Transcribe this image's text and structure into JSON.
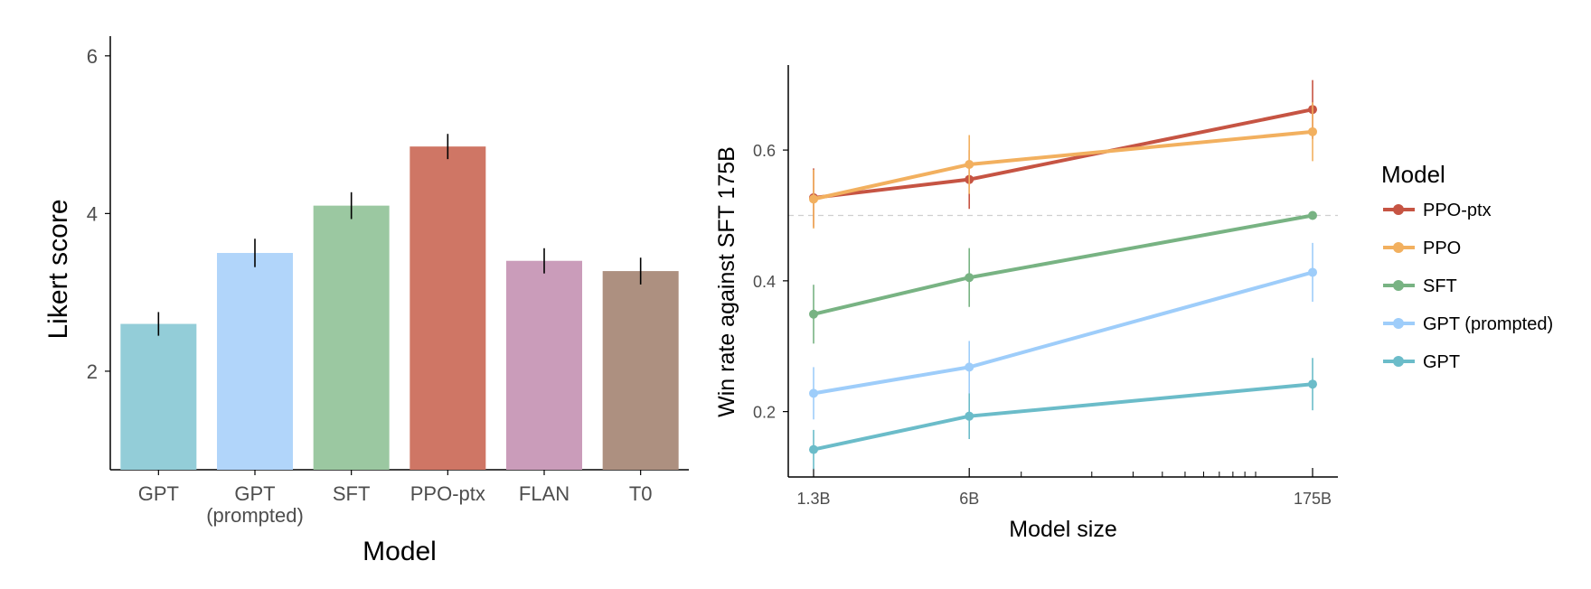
{
  "chart_data": [
    {
      "type": "bar",
      "xlabel": "Model",
      "ylabel": "Likert score",
      "ylim": [
        0.75,
        6.25
      ],
      "yticks": [
        "2",
        "4",
        "6"
      ],
      "categories": [
        "GPT",
        "GPT (prompted)",
        "SFT",
        "PPO-ptx",
        "FLAN",
        "T0"
      ],
      "category_lines": [
        [
          "GPT"
        ],
        [
          "GPT",
          "(prompted)"
        ],
        [
          "SFT"
        ],
        [
          "PPO-ptx"
        ],
        [
          "FLAN"
        ],
        [
          "T0"
        ]
      ],
      "values": [
        2.6,
        3.5,
        4.1,
        4.85,
        3.4,
        3.27
      ],
      "error": [
        0.15,
        0.18,
        0.17,
        0.16,
        0.16,
        0.17
      ],
      "colors": [
        "#93cdd8",
        "#b1d5fa",
        "#9bc8a1",
        "#cf7665",
        "#ca9cba",
        "#ad9080"
      ]
    },
    {
      "type": "line",
      "xlabel": "Model size",
      "ylabel": "Win rate against SFT 175B",
      "x_scale": "log",
      "x": [
        "1.3B",
        "6B",
        "175B"
      ],
      "xticks": [
        "1.3B",
        "6B",
        "175B"
      ],
      "ylim": [
        0.1,
        0.73
      ],
      "yticks": [
        "0.2",
        "0.4",
        "0.6"
      ],
      "reference_line": 0.5,
      "legend": {
        "title": "Model",
        "position": "right"
      },
      "series": [
        {
          "name": "PPO-ptx",
          "color": "#c65443",
          "values": [
            0.527,
            0.555,
            0.662
          ],
          "error": [
            0.045,
            0.045,
            0.045
          ]
        },
        {
          "name": "PPO",
          "color": "#f2b05f",
          "values": [
            0.525,
            0.578,
            0.628
          ],
          "error": [
            0.045,
            0.045,
            0.045
          ]
        },
        {
          "name": "SFT",
          "color": "#78b383",
          "values": [
            0.349,
            0.405,
            0.5
          ],
          "error": [
            0.045,
            0.045,
            0.0
          ]
        },
        {
          "name": "GPT (prompted)",
          "color": "#9ecdfa",
          "values": [
            0.228,
            0.268,
            0.413
          ],
          "error": [
            0.04,
            0.04,
            0.045
          ]
        },
        {
          "name": "GPT",
          "color": "#6bbcc9",
          "values": [
            0.142,
            0.193,
            0.242
          ],
          "error": [
            0.03,
            0.035,
            0.04
          ]
        }
      ]
    }
  ]
}
